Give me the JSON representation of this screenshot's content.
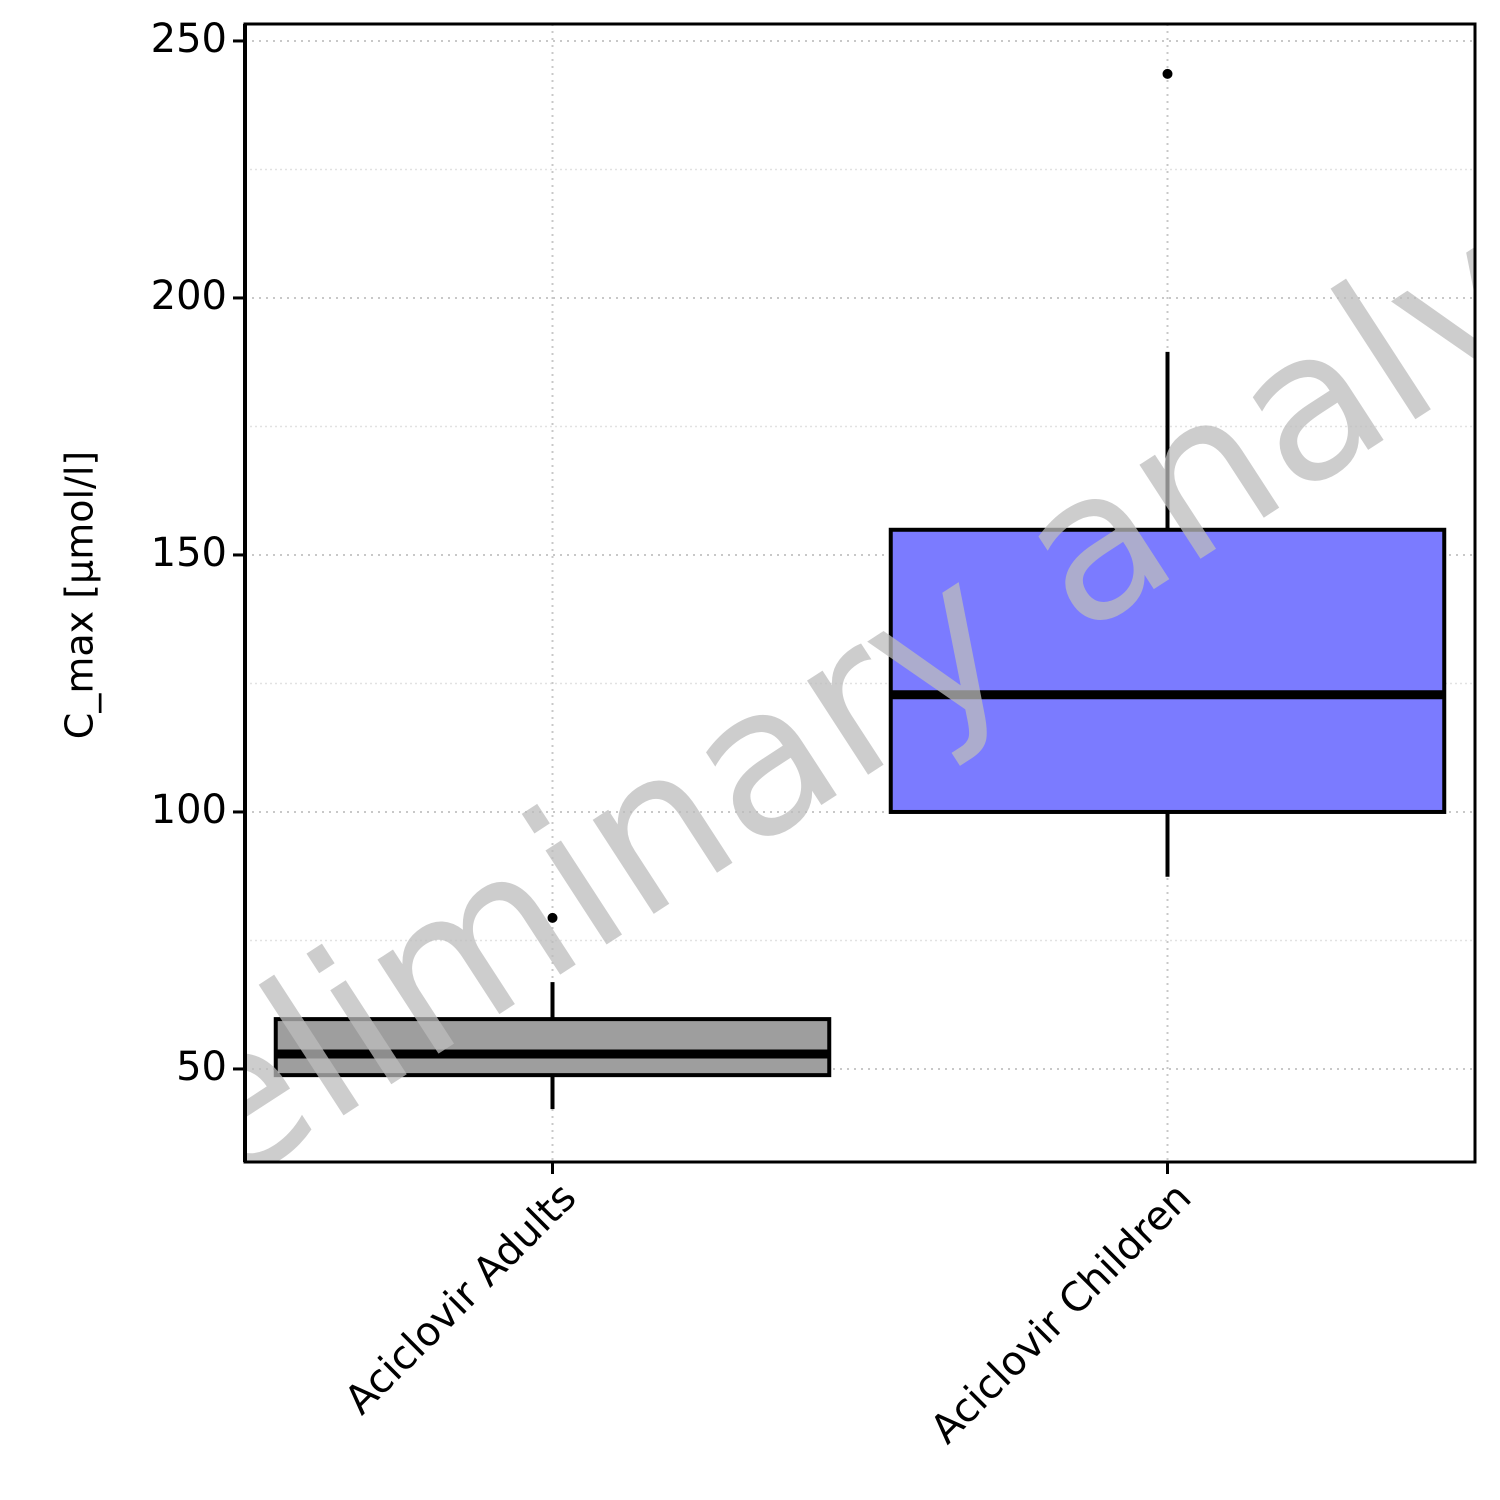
{
  "chart_data": {
    "type": "box",
    "ylabel": "C_max [µmol/l]",
    "watermark": "preliminary analysis",
    "categories": [
      "Aciclovir Adults",
      "Aciclovir Children"
    ],
    "colors": [
      "#9e9e9e",
      "#7b7bff"
    ],
    "boxes": [
      {
        "whisker_low": 42.2,
        "q1": 48.8,
        "median": 52.9,
        "q3": 59.7,
        "whisker_high": 66.9,
        "outliers": [
          79.4
        ]
      },
      {
        "whisker_low": 87.4,
        "q1": 100,
        "median": 122.8,
        "q3": 154.9,
        "whisker_high": 189.5,
        "outliers": [
          243.6
        ]
      }
    ],
    "ylim": [
      31.9,
      253.3
    ],
    "yticks": [
      50,
      100,
      150,
      200,
      250
    ],
    "yminorticks": [
      75,
      125,
      175,
      225
    ],
    "grid": true
  }
}
